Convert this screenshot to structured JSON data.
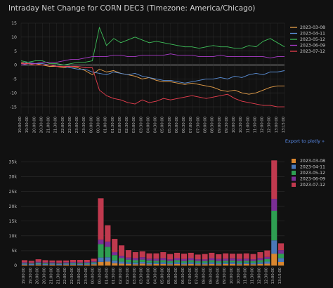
{
  "title": "Intraday Net Change for CORN DEC3 (Timezone: America/Chicago)",
  "export_link": "Export to plotly »",
  "colors": {
    "background": "#111111",
    "grid": "#2e2e2e",
    "zero_line": "#9a9a9a",
    "text": "#d0d0d0",
    "axis_text": "#bdbdbd",
    "link": "#5a8dee"
  },
  "chart_data": [
    {
      "type": "line",
      "title": "Intraday Net Change for CORN DEC3 (Timezone: America/Chicago)",
      "xlabel": "",
      "ylabel": "",
      "x": [
        "19:00",
        "19:30",
        "20:00",
        "20:30",
        "21:00",
        "21:30",
        "22:00",
        "22:30",
        "23:00",
        "23:30",
        "00:00",
        "00:30",
        "01:00",
        "01:30",
        "02:00",
        "02:30",
        "03:00",
        "03:30",
        "04:00",
        "04:30",
        "05:00",
        "05:30",
        "06:00",
        "06:30",
        "07:00",
        "07:30",
        "08:00",
        "08:30",
        "09:00",
        "09:30",
        "10:00",
        "10:30",
        "11:00",
        "11:30",
        "12:00",
        "12:30",
        "13:00",
        "13:15"
      ],
      "x_tick_labels": [
        "19:00:00",
        "19:30:00",
        "20:00:00",
        "20:30:00",
        "21:00:00",
        "21:30:00",
        "22:00:00",
        "22:30:00",
        "23:00:00",
        "23:30:00",
        "00:00:00",
        "00:30:00",
        "01:00:00",
        "01:30:00",
        "02:00:00",
        "02:30:00",
        "03:00:00",
        "03:30:00",
        "04:00:00",
        "04:30:00",
        "05:00:00",
        "05:30:00",
        "06:00:00",
        "06:30:00",
        "07:00:00",
        "07:30:00",
        "08:00:00",
        "08:30:00",
        "09:00:00",
        "09:30:00",
        "10:00:00",
        "10:30:00",
        "11:00:00",
        "11:30:00",
        "12:00:00",
        "12:30:00",
        "13:00:00",
        "13:15:00"
      ],
      "y_ticks": [
        15,
        10,
        5,
        0,
        -5,
        -10,
        -15
      ],
      "ylim": [
        -17.5,
        15
      ],
      "grid": true,
      "legend_position": "top-right",
      "series": [
        {
          "name": "2023-03-08",
          "color": "#e8a04a",
          "values": [
            1,
            0.5,
            0.5,
            0,
            -0.5,
            -0.5,
            -1,
            -0.5,
            -1,
            -2,
            -3.5,
            -1.5,
            -2.5,
            -2,
            -3,
            -3.5,
            -4,
            -5,
            -4.5,
            -5.5,
            -6,
            -6,
            -6.5,
            -7,
            -6.5,
            -7,
            -7.5,
            -8,
            -9,
            -9.5,
            -9,
            -10,
            -10.5,
            -10,
            -9,
            -8,
            -7.5,
            -7.5
          ]
        },
        {
          "name": "2023-04-11",
          "color": "#5b8fd6",
          "values": [
            0.5,
            1,
            0.5,
            0.5,
            0,
            -0.5,
            -0.5,
            -1,
            -1.5,
            -1.5,
            -2.5,
            -3,
            -3.5,
            -2.5,
            -3,
            -3.5,
            -3,
            -4,
            -4.5,
            -5,
            -5.5,
            -5.5,
            -6,
            -6.5,
            -6,
            -5.5,
            -5,
            -5,
            -4.5,
            -5,
            -4,
            -4.5,
            -3.5,
            -3,
            -3.5,
            -2.5,
            -2.5,
            -2
          ]
        },
        {
          "name": "2023-05-12",
          "color": "#3fbf5a",
          "values": [
            1.5,
            1,
            1.5,
            1.5,
            0.5,
            0.5,
            0,
            0.5,
            1,
            1,
            1.5,
            13.5,
            7,
            9.5,
            8,
            9,
            10,
            9,
            8,
            8.5,
            8,
            7.5,
            7,
            6.5,
            6.5,
            6,
            6.5,
            7,
            6.5,
            6.5,
            6,
            6,
            7,
            6.5,
            8.5,
            9.5,
            8,
            6.5
          ]
        },
        {
          "name": "2023-06-09",
          "color": "#a93bc9",
          "values": [
            0,
            0.5,
            0.5,
            1,
            1,
            1,
            1.5,
            2,
            2,
            2.5,
            3,
            3,
            3,
            3.5,
            3.5,
            3,
            3,
            3.5,
            3.5,
            3.5,
            3.5,
            4,
            3.5,
            3.5,
            3.5,
            3,
            3,
            3,
            3.5,
            3,
            3,
            3,
            3,
            3,
            3,
            2.5,
            3,
            3
          ]
        },
        {
          "name": "2023-07-12",
          "color": "#e83e4f",
          "values": [
            0.5,
            0.5,
            0,
            0,
            0,
            -0.5,
            -0.5,
            -0.5,
            -0.5,
            -1,
            -1,
            -9,
            -11,
            -12,
            -12.5,
            -13.5,
            -14,
            -12.5,
            -13.5,
            -13,
            -12,
            -12.5,
            -12,
            -11.5,
            -11,
            -11.5,
            -12,
            -11.5,
            -11,
            -10.5,
            -12,
            -13,
            -13.5,
            -14,
            -14.5,
            -14.5,
            -15,
            -15
          ]
        }
      ]
    },
    {
      "type": "bar",
      "stacked": true,
      "title": "",
      "xlabel": "",
      "ylabel": "",
      "categories": [
        "19:00",
        "19:30",
        "20:00",
        "20:30",
        "21:00",
        "21:30",
        "22:00",
        "22:30",
        "23:00",
        "23:30",
        "00:00",
        "00:30",
        "01:00",
        "01:30",
        "02:00",
        "02:30",
        "03:00",
        "03:30",
        "04:00",
        "04:30",
        "05:00",
        "05:30",
        "06:00",
        "06:30",
        "07:00",
        "07:30",
        "08:00",
        "08:30",
        "09:00",
        "09:30",
        "10:00",
        "10:30",
        "11:00",
        "11:30",
        "12:00",
        "12:30",
        "13:00",
        "13:15"
      ],
      "x_tick_labels": [
        "19:00:00",
        "19:30:00",
        "20:00:00",
        "20:30:00",
        "21:00:00",
        "21:30:00",
        "22:00:00",
        "22:30:00",
        "23:00:00",
        "23:30:00",
        "00:00:00",
        "00:30:00",
        "01:00:00",
        "01:30:00",
        "02:00:00",
        "02:30:00",
        "03:00:00",
        "03:30:00",
        "04:00:00",
        "04:30:00",
        "05:00:00",
        "05:30:00",
        "06:00:00",
        "06:30:00",
        "07:00:00",
        "07:30:00",
        "08:00:00",
        "08:30:00",
        "09:00:00",
        "09:30:00",
        "10:00:00",
        "10:30:00",
        "11:00:00",
        "11:30:00",
        "12:00:00",
        "12:30:00",
        "13:00:00",
        "13:15:00"
      ],
      "y_ticks": [
        0,
        5000,
        10000,
        15000,
        20000,
        25000,
        30000,
        35000
      ],
      "y_tick_labels": [
        "0",
        "5k",
        "10k",
        "15k",
        "20k",
        "25k",
        "30k",
        "35k"
      ],
      "ylim": [
        0,
        37000
      ],
      "grid": true,
      "legend_position": "top-right",
      "series": [
        {
          "name": "2023-03-08",
          "color": "#d9862f",
          "values": [
            300,
            200,
            300,
            200,
            300,
            200,
            300,
            300,
            200,
            300,
            400,
            1200,
            1300,
            800,
            600,
            500,
            400,
            600,
            400,
            500,
            500,
            400,
            500,
            400,
            500,
            400,
            400,
            500,
            400,
            500,
            500,
            400,
            500,
            400,
            500,
            600,
            4000,
            1200
          ]
        },
        {
          "name": "2023-04-11",
          "color": "#4a78b8",
          "values": [
            300,
            300,
            400,
            300,
            300,
            300,
            300,
            300,
            300,
            300,
            400,
            1500,
            1500,
            900,
            700,
            600,
            600,
            600,
            600,
            500,
            600,
            500,
            600,
            500,
            600,
            500,
            500,
            600,
            500,
            500,
            600,
            500,
            500,
            500,
            600,
            700,
            4500,
            1300
          ]
        },
        {
          "name": "2023-05-12",
          "color": "#2e9e52",
          "values": [
            200,
            200,
            300,
            300,
            200,
            200,
            200,
            300,
            300,
            300,
            300,
            4500,
            3500,
            1800,
            1200,
            900,
            800,
            800,
            700,
            600,
            700,
            600,
            700,
            600,
            700,
            600,
            600,
            700,
            600,
            600,
            600,
            600,
            600,
            600,
            700,
            900,
            10000,
            1500
          ]
        },
        {
          "name": "2023-06-09",
          "color": "#7b2e95",
          "values": [
            300,
            300,
            300,
            300,
            300,
            300,
            300,
            300,
            300,
            300,
            300,
            1500,
            1800,
            1000,
            800,
            700,
            700,
            800,
            600,
            700,
            700,
            600,
            700,
            700,
            700,
            600,
            600,
            700,
            700,
            700,
            700,
            700,
            700,
            600,
            700,
            700,
            4000,
            1200
          ]
        },
        {
          "name": "2023-07-12",
          "color": "#c0394e",
          "values": [
            700,
            600,
            800,
            700,
            600,
            700,
            600,
            700,
            800,
            700,
            900,
            14000,
            5500,
            4500,
            3500,
            2500,
            2000,
            2000,
            1800,
            1800,
            2000,
            1800,
            1800,
            1800,
            1800,
            1600,
            1800,
            1800,
            1600,
            1800,
            1600,
            1800,
            1800,
            1800,
            2000,
            2200,
            13000,
            2300
          ]
        }
      ]
    }
  ]
}
